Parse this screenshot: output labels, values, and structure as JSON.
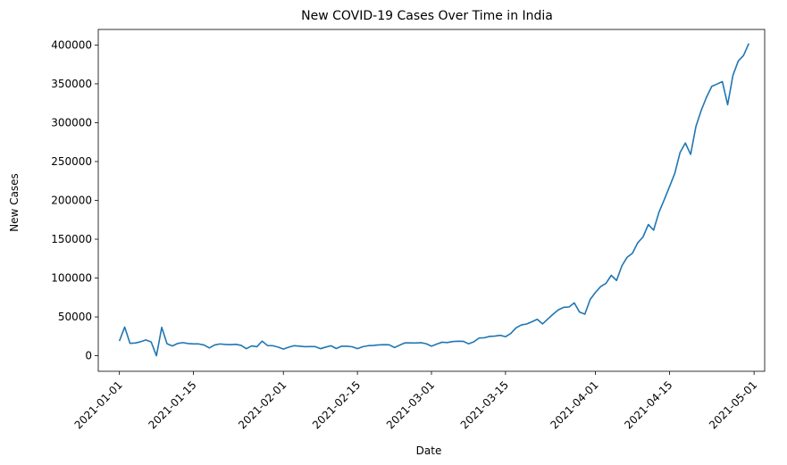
{
  "chart_data": {
    "type": "line",
    "title": "New COVID-19 Cases Over Time in India",
    "xlabel": "Date",
    "ylabel": "New Cases",
    "xlim": [
      "2020-12-28",
      "2021-05-03"
    ],
    "ylim": [
      -20000,
      420000
    ],
    "grid": false,
    "line_color": "#1f77b4",
    "x_ticks": [
      "2021-01-01",
      "2021-01-15",
      "2021-02-01",
      "2021-02-15",
      "2021-03-01",
      "2021-03-15",
      "2021-04-01",
      "2021-04-15",
      "2021-05-01"
    ],
    "y_ticks": [
      0,
      50000,
      100000,
      150000,
      200000,
      250000,
      300000,
      350000,
      400000
    ],
    "series": [
      {
        "x": [
          "2021-01-01",
          "2021-01-02",
          "2021-01-03",
          "2021-01-04",
          "2021-01-05",
          "2021-01-06",
          "2021-01-07",
          "2021-01-08",
          "2021-01-09",
          "2021-01-10",
          "2021-01-11",
          "2021-01-12",
          "2021-01-13",
          "2021-01-14",
          "2021-01-15",
          "2021-01-16",
          "2021-01-17",
          "2021-01-18",
          "2021-01-19",
          "2021-01-20",
          "2021-01-21",
          "2021-01-22",
          "2021-01-23",
          "2021-01-24",
          "2021-01-25",
          "2021-01-26",
          "2021-01-27",
          "2021-01-28",
          "2021-01-29",
          "2021-01-30",
          "2021-01-31",
          "2021-02-01",
          "2021-02-02",
          "2021-02-03",
          "2021-02-04",
          "2021-02-05",
          "2021-02-06",
          "2021-02-07",
          "2021-02-08",
          "2021-02-09",
          "2021-02-10",
          "2021-02-11",
          "2021-02-12",
          "2021-02-13",
          "2021-02-14",
          "2021-02-15",
          "2021-02-16",
          "2021-02-17",
          "2021-02-18",
          "2021-02-19",
          "2021-02-20",
          "2021-02-21",
          "2021-02-22",
          "2021-02-23",
          "2021-02-24",
          "2021-02-25",
          "2021-02-26",
          "2021-02-27",
          "2021-02-28",
          "2021-03-01",
          "2021-03-02",
          "2021-03-03",
          "2021-03-04",
          "2021-03-05",
          "2021-03-06",
          "2021-03-07",
          "2021-03-08",
          "2021-03-09",
          "2021-03-10",
          "2021-03-11",
          "2021-03-12",
          "2021-03-13",
          "2021-03-14",
          "2021-03-15",
          "2021-03-16",
          "2021-03-17",
          "2021-03-18",
          "2021-03-19",
          "2021-03-20",
          "2021-03-21",
          "2021-03-22",
          "2021-03-23",
          "2021-03-24",
          "2021-03-25",
          "2021-03-26",
          "2021-03-27",
          "2021-03-28",
          "2021-03-29",
          "2021-03-30",
          "2021-03-31",
          "2021-04-01",
          "2021-04-02",
          "2021-04-03",
          "2021-04-04",
          "2021-04-05",
          "2021-04-06",
          "2021-04-07",
          "2021-04-08",
          "2021-04-09",
          "2021-04-10",
          "2021-04-11",
          "2021-04-12",
          "2021-04-13",
          "2021-04-14",
          "2021-04-15",
          "2021-04-16",
          "2021-04-17",
          "2021-04-18",
          "2021-04-19",
          "2021-04-20",
          "2021-04-21",
          "2021-04-22",
          "2021-04-23",
          "2021-04-24",
          "2021-04-25",
          "2021-04-26",
          "2021-04-27",
          "2021-04-28",
          "2021-04-29",
          "2021-04-30"
        ],
        "y": [
          19000,
          36900,
          16000,
          16400,
          18000,
          20300,
          17800,
          0,
          36500,
          15500,
          12600,
          15800,
          16900,
          15700,
          15300,
          15200,
          13800,
          10100,
          13800,
          15200,
          14500,
          14300,
          14700,
          13400,
          9100,
          12700,
          11700,
          18800,
          13100,
          12900,
          11200,
          8600,
          11000,
          12900,
          12400,
          11700,
          11800,
          11800,
          9100,
          11100,
          12900,
          9300,
          12300,
          12200,
          11600,
          9100,
          11600,
          12900,
          13200,
          14000,
          14300,
          14100,
          10600,
          13700,
          16600,
          16500,
          16400,
          16800,
          15500,
          12300,
          15000,
          17400,
          17000,
          18300,
          18700,
          18600,
          15400,
          17900,
          22800,
          23200,
          24900,
          25300,
          26300,
          24500,
          28700,
          35900,
          39700,
          40900,
          43800,
          46900,
          41000,
          47300,
          53500,
          59100,
          62300,
          62700,
          68000,
          56200,
          53500,
          72300,
          81500,
          89100,
          93200,
          103500,
          96900,
          115700,
          126800,
          131900,
          145400,
          152900,
          168900,
          161700,
          184400,
          200700,
          217400,
          234700,
          261500,
          273800,
          259200,
          295000,
          315800,
          332700,
          346800,
          349700,
          352900,
          323100,
          360900,
          379300,
          386500,
          402000
        ]
      }
    ]
  }
}
